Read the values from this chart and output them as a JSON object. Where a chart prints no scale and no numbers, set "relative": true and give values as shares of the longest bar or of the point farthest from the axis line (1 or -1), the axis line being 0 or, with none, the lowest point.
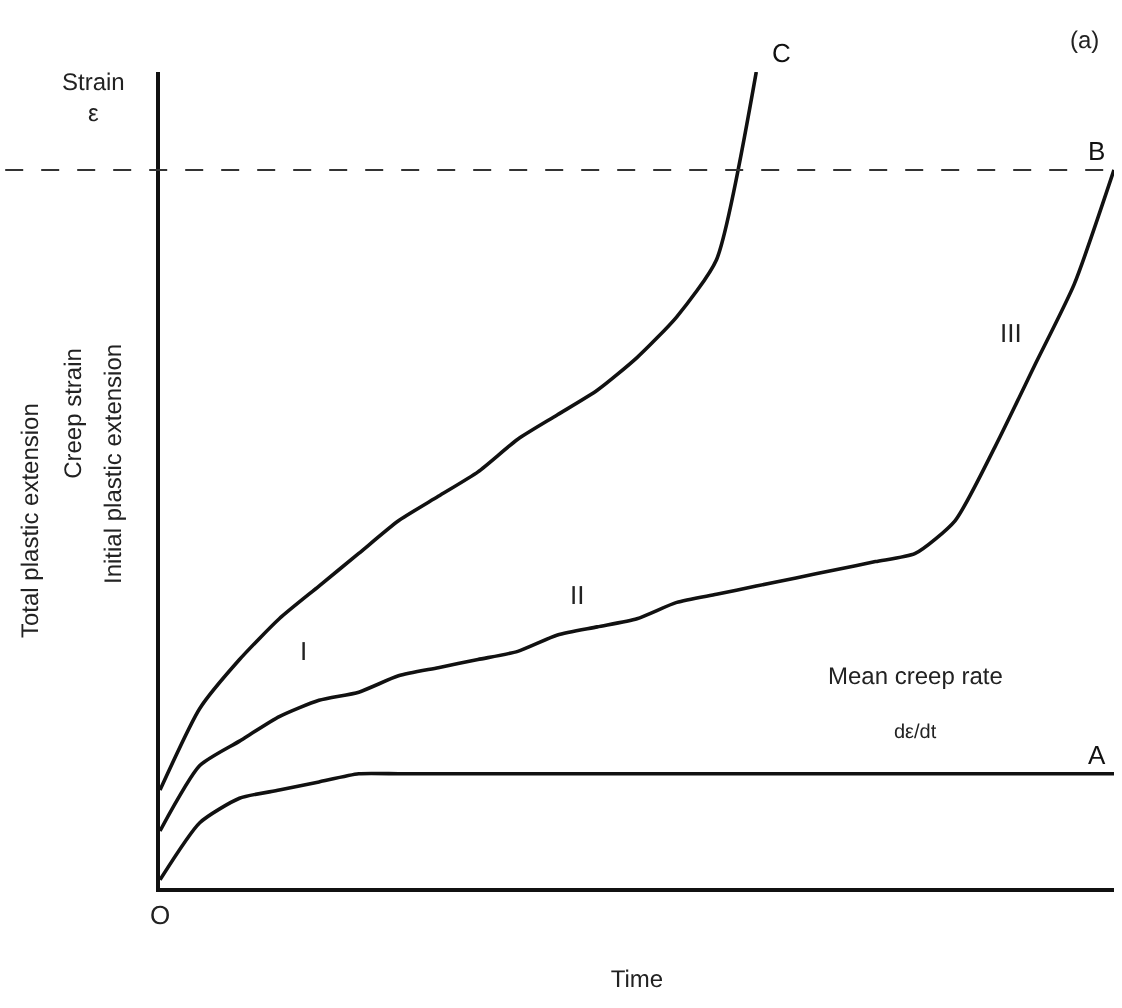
{
  "chart_data": {
    "type": "line",
    "relative": true,
    "ylabel": "Strain\nε",
    "xlabel": "Time",
    "categories": [
      null,
      null,
      null,
      null,
      null,
      null,
      null,
      null,
      null,
      null,
      null,
      null,
      null,
      null,
      null,
      null,
      null,
      null,
      null,
      null,
      null,
      null,
      null,
      null,
      null
    ],
    "series": [
      {
        "name": "A",
        "color": "#111111",
        "values": [
          0.01,
          0.08,
          0.11,
          0.12,
          0.13,
          0.14,
          0.14,
          0.14,
          0.14,
          0.14,
          0.14,
          0.14,
          0.14,
          0.14,
          0.14,
          0.14,
          0.14,
          0.14,
          0.14,
          0.14,
          0.14,
          0.14,
          0.14,
          0.14,
          0.14
        ]
      },
      {
        "name": "B",
        "color": "#111111",
        "values": [
          0.07,
          0.15,
          0.18,
          0.21,
          0.23,
          0.24,
          0.26,
          0.27,
          0.28,
          0.29,
          0.31,
          0.32,
          0.33,
          0.35,
          0.36,
          0.37,
          0.38,
          0.39,
          0.4,
          0.41,
          0.45,
          0.54,
          0.64,
          0.74,
          0.88
        ]
      },
      {
        "name": "C",
        "color": "#111111",
        "values": [
          0.12,
          0.22,
          0.28,
          0.33,
          0.37,
          0.41,
          0.45,
          0.48,
          0.51,
          0.55,
          0.58,
          0.61,
          0.65,
          0.7,
          0.77,
          1,
          null,
          null,
          null,
          null,
          null,
          null,
          null,
          null,
          null
        ]
      }
    ],
    "ref_lines": [
      {
        "axis": "y",
        "value": 0.88,
        "color": "#333333",
        "line_style": "dashed"
      }
    ],
    "annotations": [
      "(a)",
      "O",
      "I",
      "II",
      "III",
      "Mean creep rate",
      "dε/dt",
      "Total plastic extension",
      "Creep strain",
      "Initial plastic extension"
    ],
    "legend": false,
    "marker": "none",
    "line_style": "solid"
  }
}
